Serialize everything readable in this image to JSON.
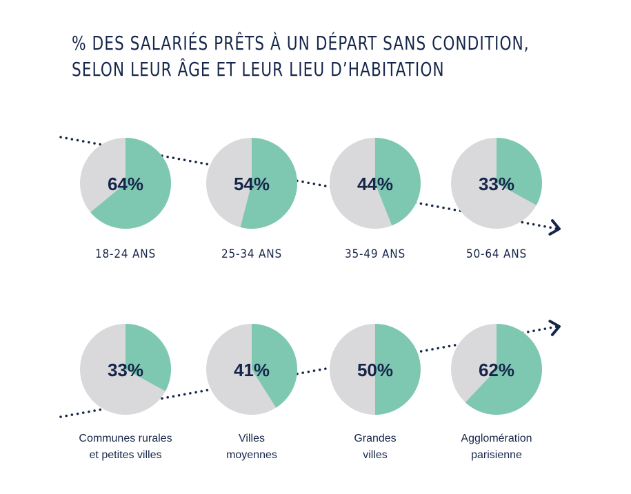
{
  "title_lines": [
    "% DES SALARIÉS PRÊTS À UN DÉPART SANS CONDITION,",
    "SELON LEUR ÂGE ET LEUR LIEU D’HABITATION"
  ],
  "colors": {
    "accent": "#7ec8b2",
    "rest": "#d9d9dc",
    "text": "#16264a"
  },
  "chart_data": [
    {
      "type": "pie",
      "group": "age",
      "categories": [
        "18-24 ANS",
        "25-34 ANS",
        "35-49 ANS",
        "50-64 ANS"
      ],
      "values": [
        64,
        54,
        44,
        33
      ],
      "value_labels": [
        "64%",
        "54%",
        "44%",
        "33%"
      ],
      "trend": "decreasing"
    },
    {
      "type": "pie",
      "group": "location",
      "categories": [
        [
          "Communes rurales",
          "et petites villes"
        ],
        [
          "Villes",
          "moyennes"
        ],
        [
          "Grandes",
          "villes"
        ],
        [
          "Agglomération",
          "parisienne"
        ]
      ],
      "values": [
        33,
        41,
        50,
        62
      ],
      "value_labels": [
        "33%",
        "41%",
        "50%",
        "62%"
      ],
      "trend": "increasing"
    }
  ]
}
